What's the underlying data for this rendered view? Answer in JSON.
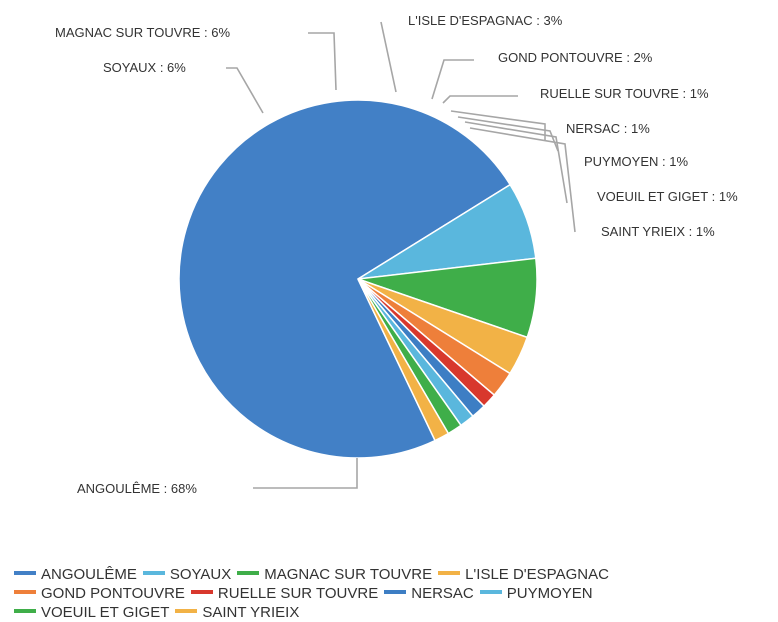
{
  "chart_data": {
    "type": "pie",
    "title": "",
    "slices": [
      {
        "label": "ANGOULÊME",
        "value": 68,
        "text": "ANGOULÊME : 68%",
        "color": "#4280c6"
      },
      {
        "label": "SOYAUX",
        "value": 6,
        "text": "SOYAUX : 6%",
        "color": "#5ab7dd"
      },
      {
        "label": "MAGNAC SUR TOUVRE",
        "value": 6,
        "text": "MAGNAC SUR TOUVRE : 6%",
        "color": "#3fae49"
      },
      {
        "label": "L'ISLE D'ESPAGNAC",
        "value": 3,
        "text": "L'ISLE D'ESPAGNAC : 3%",
        "color": "#f2b246"
      },
      {
        "label": "GOND PONTOUVRE",
        "value": 2,
        "text": "GOND PONTOUVRE : 2%",
        "color": "#ee7f3a"
      },
      {
        "label": "RUELLE SUR TOUVRE",
        "value": 1,
        "text": "RUELLE SUR TOUVRE : 1%",
        "color": "#d8382d"
      },
      {
        "label": "NERSAC",
        "value": 1,
        "text": "NERSAC : 1%",
        "color": "#3d7ec4"
      },
      {
        "label": "PUYMOYEN",
        "value": 1,
        "text": "PUYMOYEN : 1%",
        "color": "#5ab7dd"
      },
      {
        "label": "VOEUIL ET GIGET",
        "value": 1,
        "text": "VOEUIL ET GIGET : 1%",
        "color": "#3fae49"
      },
      {
        "label": "SAINT YRIEIX",
        "value": 1,
        "text": "SAINT YRIEIX : 1%",
        "color": "#f2b246"
      }
    ],
    "legend_placement": "bottom",
    "legend_rows": [
      [
        "ANGOULÊME",
        "SOYAUX",
        "MAGNAC SUR TOUVRE",
        "L'ISLE D'ESPAGNAC"
      ],
      [
        "GOND PONTOUVRE",
        "RUELLE SUR TOUVRE",
        "NERSAC",
        "PUYMOYEN"
      ],
      [
        "VOEUIL ET GIGET",
        "SAINT YRIEIX"
      ]
    ]
  }
}
